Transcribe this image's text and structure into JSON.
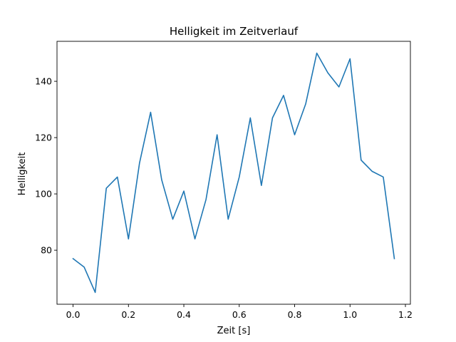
{
  "chart_data": {
    "type": "line",
    "title": "Helligkeit im Zeitverlauf",
    "xlabel": "Zeit [s]",
    "ylabel": "Helligkeit",
    "xlim": [
      -0.058,
      1.218
    ],
    "ylim": [
      60.8,
      154.2
    ],
    "xticks": [
      0.0,
      0.2,
      0.4,
      0.6,
      0.8,
      1.0,
      1.2
    ],
    "xtick_labels": [
      "0.0",
      "0.2",
      "0.4",
      "0.6",
      "0.8",
      "1.0",
      "1.2"
    ],
    "yticks": [
      80,
      100,
      120,
      140
    ],
    "ytick_labels": [
      "80",
      "100",
      "120",
      "140"
    ],
    "grid": false,
    "series": [
      {
        "color": "#1f77b4",
        "x": [
          0.0,
          0.04,
          0.08,
          0.12,
          0.16,
          0.2,
          0.24,
          0.28,
          0.32,
          0.36,
          0.4,
          0.44,
          0.48,
          0.52,
          0.56,
          0.6,
          0.64,
          0.68,
          0.72,
          0.76,
          0.8,
          0.84,
          0.88,
          0.92,
          0.96,
          1.0,
          1.04,
          1.08,
          1.12,
          1.16
        ],
        "y": [
          77,
          74,
          65,
          102,
          106,
          84,
          111,
          129,
          105,
          91,
          101,
          84,
          98,
          121,
          91,
          106,
          127,
          103,
          127,
          135,
          121,
          132,
          150,
          143,
          138,
          148,
          112,
          108,
          106,
          77
        ]
      }
    ]
  }
}
